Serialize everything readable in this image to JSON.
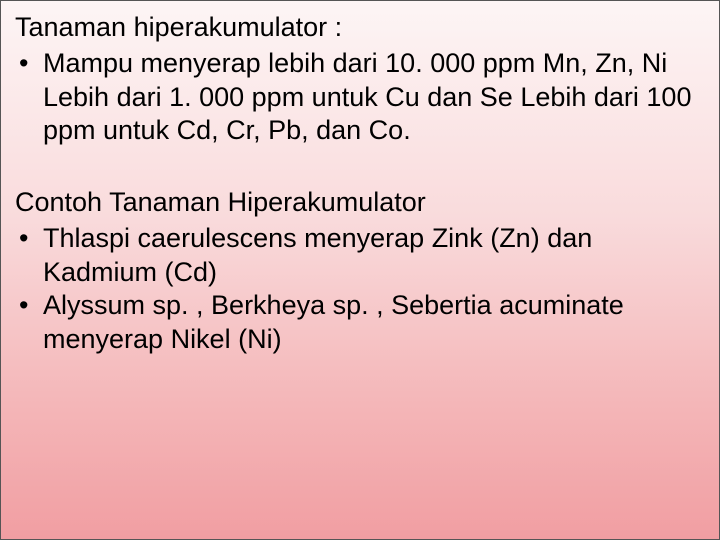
{
  "slide": {
    "background_gradient_top": "#fdf5f5",
    "background_gradient_mid1": "#f9dbdc",
    "background_gradient_mid2": "#f4b6b8",
    "background_gradient_bottom": "#f19ea2",
    "border_color": "#555555",
    "text_color": "#000000",
    "font_family": "Verdana",
    "font_size_pt": 20
  },
  "section1": {
    "heading": "Tanaman hiperakumulator :",
    "bullet_mark": "•",
    "bullet_text": "Mampu menyerap lebih dari 10. 000 ppm Mn, Zn, Ni Lebih dari 1. 000 ppm untuk Cu dan Se Lebih dari 100 ppm untuk Cd, Cr, Pb, dan Co."
  },
  "section2": {
    "heading": "Contoh Tanaman Hiperakumulator",
    "bullets": [
      {
        "mark": "•",
        "text": "Thlaspi caerulescens menyerap Zink (Zn) dan Kadmium (Cd)"
      },
      {
        "mark": "•",
        "text": "Alyssum sp. , Berkheya sp. , Sebertia acuminate menyerap Nikel (Ni)"
      }
    ]
  }
}
